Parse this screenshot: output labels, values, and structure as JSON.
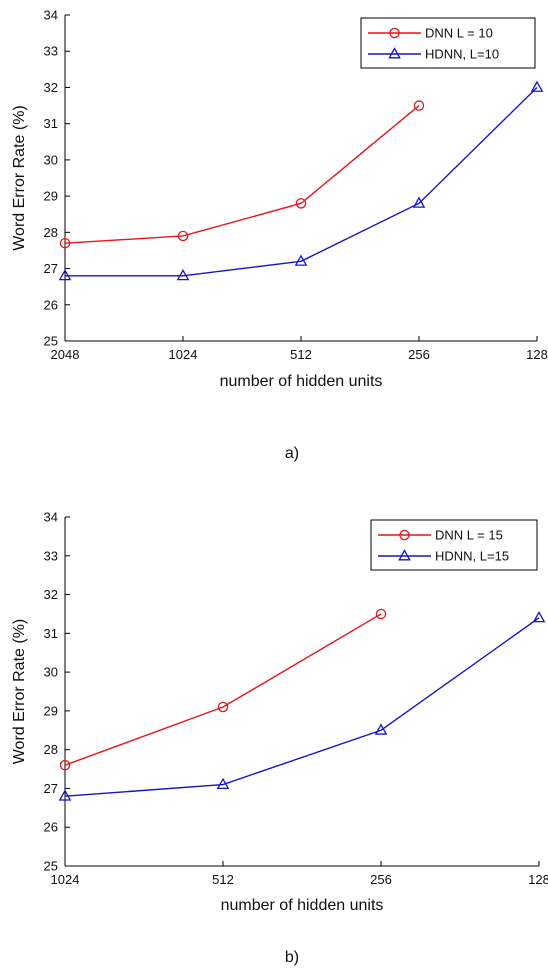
{
  "chart_data": [
    {
      "type": "line",
      "caption": "a)",
      "categories": [
        "2048",
        "1024",
        "512",
        "256",
        "128"
      ],
      "xlabel": "number of hidden units",
      "ylabel": "Word Error Rate (%)",
      "ylim": [
        25,
        34
      ],
      "yticks": [
        25,
        26,
        27,
        28,
        29,
        30,
        31,
        32,
        33,
        34
      ],
      "grid": false,
      "legend_position": "top-right",
      "series": [
        {
          "name": "DNN L = 10",
          "color": "#e8141a",
          "marker": "circle",
          "values": [
            27.7,
            27.9,
            28.8,
            31.5,
            null
          ]
        },
        {
          "name": "HDNN, L=10",
          "color": "#1515c8",
          "marker": "triangle",
          "values": [
            26.8,
            26.8,
            27.2,
            28.8,
            32.0
          ]
        }
      ]
    },
    {
      "type": "line",
      "caption": "b)",
      "categories": [
        "1024",
        "512",
        "256",
        "128"
      ],
      "xlabel": "number of hidden units",
      "ylabel": "Word Error Rate (%)",
      "ylim": [
        25,
        34
      ],
      "yticks": [
        25,
        26,
        27,
        28,
        29,
        30,
        31,
        32,
        33,
        34
      ],
      "grid": false,
      "legend_position": "top-right",
      "series": [
        {
          "name": "DNN L = 15",
          "color": "#e8141a",
          "marker": "circle",
          "values": [
            27.6,
            29.1,
            31.5,
            null
          ]
        },
        {
          "name": "HDNN, L=15",
          "color": "#1515c8",
          "marker": "triangle",
          "values": [
            26.8,
            27.1,
            28.5,
            31.4
          ]
        }
      ]
    }
  ]
}
